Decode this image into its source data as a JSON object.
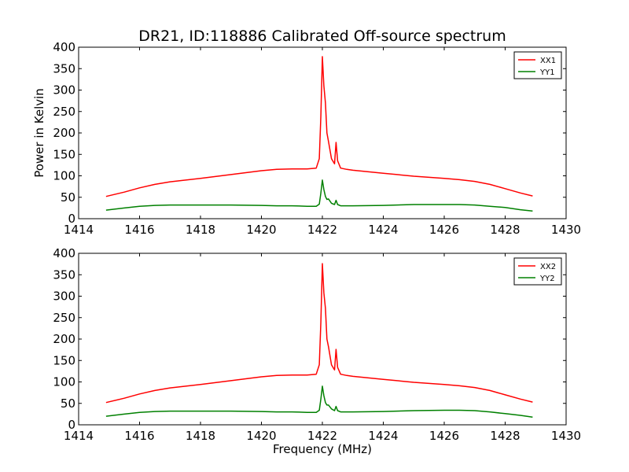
{
  "chart_data": {
    "type": "line",
    "title": "DR21, ID:118886 Calibrated Off-source spectrum",
    "ylabel": "Power in Kelvin",
    "xlabel": "Frequency (MHz)",
    "xlim": [
      1414,
      1430
    ],
    "ylim": [
      0,
      400
    ],
    "x_ticks": [
      1414,
      1416,
      1418,
      1420,
      1422,
      1424,
      1426,
      1428,
      1430
    ],
    "y_ticks": [
      0,
      50,
      100,
      150,
      200,
      250,
      300,
      350,
      400
    ],
    "grid": false,
    "legend_position": "top-right",
    "panels": [
      {
        "ylabel": "Power in Kelvin",
        "xlabel": "",
        "series": [
          {
            "name": "XX1",
            "color": "#ff0000",
            "x": [
              1414.9,
              1415.5,
              1416.0,
              1416.5,
              1417.0,
              1418.0,
              1419.0,
              1420.0,
              1420.5,
              1421.0,
              1421.5,
              1421.8,
              1421.9,
              1421.95,
              1422.0,
              1422.05,
              1422.1,
              1422.15,
              1422.2,
              1422.3,
              1422.4,
              1422.45,
              1422.5,
              1422.6,
              1422.8,
              1423.0,
              1424.0,
              1425.0,
              1426.0,
              1426.5,
              1427.0,
              1427.5,
              1428.0,
              1428.5,
              1428.9
            ],
            "values": [
              52,
              62,
              72,
              80,
              86,
              94,
              103,
              112,
              115,
              116,
              116,
              118,
              140,
              240,
              378,
              310,
              270,
              200,
              180,
              140,
              128,
              178,
              135,
              118,
              115,
              113,
              106,
              99,
              94,
              91,
              87,
              80,
              70,
              60,
              53
            ]
          },
          {
            "name": "YY1",
            "color": "#008000",
            "x": [
              1414.9,
              1415.5,
              1416.0,
              1416.5,
              1417.0,
              1418.0,
              1419.0,
              1420.0,
              1420.5,
              1421.0,
              1421.5,
              1421.8,
              1421.9,
              1421.95,
              1422.0,
              1422.05,
              1422.1,
              1422.15,
              1422.2,
              1422.3,
              1422.4,
              1422.45,
              1422.5,
              1422.6,
              1422.8,
              1423.0,
              1424.0,
              1425.0,
              1426.0,
              1426.5,
              1427.0,
              1427.5,
              1428.0,
              1428.5,
              1428.9
            ],
            "values": [
              20,
              25,
              29,
              31,
              32,
              32,
              32,
              31,
              30,
              30,
              29,
              29,
              34,
              60,
              90,
              68,
              52,
              45,
              46,
              36,
              33,
              43,
              33,
              30,
              30,
              30,
              31,
              33,
              33,
              33,
              32,
              29,
              26,
              21,
              18
            ]
          }
        ]
      },
      {
        "ylabel": "",
        "xlabel": "Frequency (MHz)",
        "series": [
          {
            "name": "XX2",
            "color": "#ff0000",
            "x": [
              1414.9,
              1415.5,
              1416.0,
              1416.5,
              1417.0,
              1418.0,
              1419.0,
              1420.0,
              1420.5,
              1421.0,
              1421.5,
              1421.8,
              1421.9,
              1421.95,
              1422.0,
              1422.05,
              1422.1,
              1422.15,
              1422.2,
              1422.3,
              1422.4,
              1422.45,
              1422.5,
              1422.6,
              1422.8,
              1423.0,
              1424.0,
              1425.0,
              1426.0,
              1426.5,
              1427.0,
              1427.5,
              1428.0,
              1428.5,
              1428.9
            ],
            "values": [
              52,
              62,
              72,
              80,
              86,
              94,
              103,
              112,
              115,
              116,
              116,
              118,
              140,
              240,
              376,
              308,
              272,
              200,
              182,
              140,
              128,
              176,
              134,
              118,
              115,
              113,
              106,
              99,
              94,
              91,
              87,
              80,
              70,
              60,
              53
            ]
          },
          {
            "name": "YY2",
            "color": "#008000",
            "x": [
              1414.9,
              1415.5,
              1416.0,
              1416.5,
              1417.0,
              1418.0,
              1419.0,
              1420.0,
              1420.5,
              1421.0,
              1421.5,
              1421.8,
              1421.9,
              1421.95,
              1422.0,
              1422.05,
              1422.1,
              1422.15,
              1422.2,
              1422.3,
              1422.4,
              1422.45,
              1422.5,
              1422.6,
              1422.8,
              1423.0,
              1424.0,
              1425.0,
              1426.0,
              1426.5,
              1427.0,
              1427.5,
              1428.0,
              1428.5,
              1428.9
            ],
            "values": [
              20,
              25,
              29,
              31,
              32,
              32,
              32,
              31,
              30,
              30,
              29,
              29,
              34,
              60,
              90,
              68,
              52,
              46,
              46,
              37,
              33,
              43,
              33,
              30,
              30,
              30,
              31,
              33,
              34,
              34,
              33,
              30,
              26,
              22,
              18
            ]
          }
        ]
      }
    ]
  }
}
